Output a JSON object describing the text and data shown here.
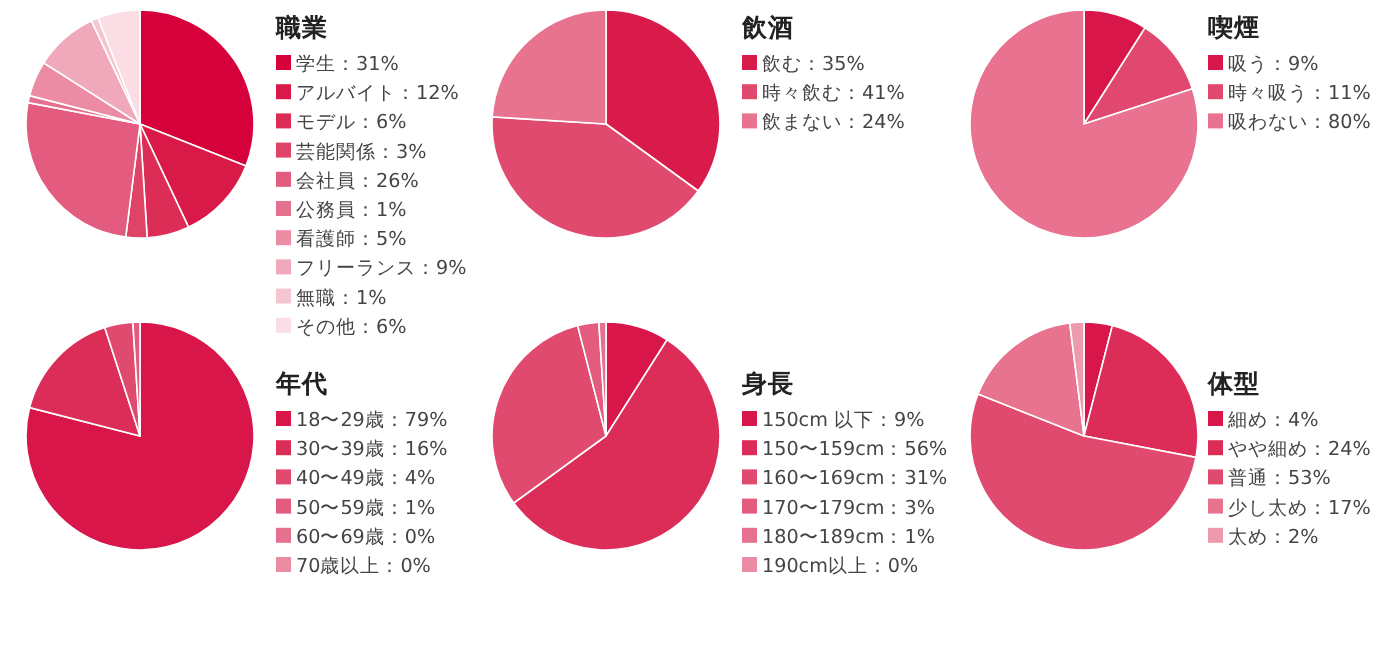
{
  "chart_data": [
    {
      "type": "pie",
      "title": "職業",
      "legend": "right",
      "categories": [
        "学生",
        "アルバイト",
        "モデル",
        "芸能関係",
        "会社員",
        "公務員",
        "看護師",
        "フリーランス",
        "無職",
        "その他"
      ],
      "values": [
        31,
        12,
        6,
        3,
        26,
        1,
        5,
        9,
        1,
        6
      ],
      "value_labels": [
        "31%",
        "12%",
        "6%",
        "3%",
        "26%",
        "1%",
        "5%",
        "9%",
        "1%",
        "6%"
      ],
      "colors": [
        "#d6003a",
        "#d91a48",
        "#dc2d57",
        "#df4466",
        "#e35b7f",
        "#e6708f",
        "#eb8ca4",
        "#f0a9ba",
        "#f5c6d2",
        "#fadde5"
      ]
    },
    {
      "type": "pie",
      "title": "飲酒",
      "legend": "right",
      "categories": [
        "飲む",
        "時々飲む",
        "飲まない"
      ],
      "values": [
        35,
        41,
        24
      ],
      "value_labels": [
        "35%",
        "41%",
        "24%"
      ],
      "colors": [
        "#d81b4b",
        "#e04a6e",
        "#e8738f"
      ]
    },
    {
      "type": "pie",
      "title": "喫煙",
      "legend": "right",
      "categories": [
        "吸う",
        "時々吸う",
        "吸わない"
      ],
      "values": [
        9,
        11,
        80
      ],
      "value_labels": [
        "9%",
        "11%",
        "80%"
      ],
      "colors": [
        "#d9164a",
        "#e04870",
        "#e8728f"
      ]
    },
    {
      "type": "pie",
      "title": "年代",
      "legend": "right",
      "categories": [
        "18〜29歳",
        "30〜39歳",
        "40〜49歳",
        "50〜59歳",
        "60〜69歳",
        "70歳以上"
      ],
      "values": [
        79,
        16,
        4,
        1,
        0,
        0
      ],
      "value_labels": [
        "79%",
        "16%",
        "4%",
        "1%",
        "0%",
        "0%"
      ],
      "colors": [
        "#d9164a",
        "#dc2d58",
        "#e04a6e",
        "#e35b7f",
        "#e6708f",
        "#eb8ca4"
      ]
    },
    {
      "type": "pie",
      "title": "身長",
      "legend": "right",
      "categories": [
        "150cm 以下",
        "150〜159cm",
        "160〜169cm",
        "170〜179cm",
        "180〜189cm",
        "190cm以上"
      ],
      "values": [
        9,
        56,
        31,
        3,
        1,
        0
      ],
      "value_labels": [
        "9%",
        "56%",
        "31%",
        "3%",
        "1%",
        "0%"
      ],
      "colors": [
        "#d9164a",
        "#dc2d58",
        "#e04a6e",
        "#e35b7f",
        "#e6708f",
        "#eb8ca4"
      ]
    },
    {
      "type": "pie",
      "title": "体型",
      "legend": "right",
      "categories": [
        "細め",
        "やや細め",
        "普通",
        "少し太め",
        "太め"
      ],
      "values": [
        4,
        24,
        53,
        17,
        2
      ],
      "value_labels": [
        "4%",
        "24%",
        "53%",
        "17%",
        "2%"
      ],
      "colors": [
        "#d9164a",
        "#dc2d58",
        "#e04a6e",
        "#e8738f",
        "#ee9aae"
      ]
    }
  ]
}
